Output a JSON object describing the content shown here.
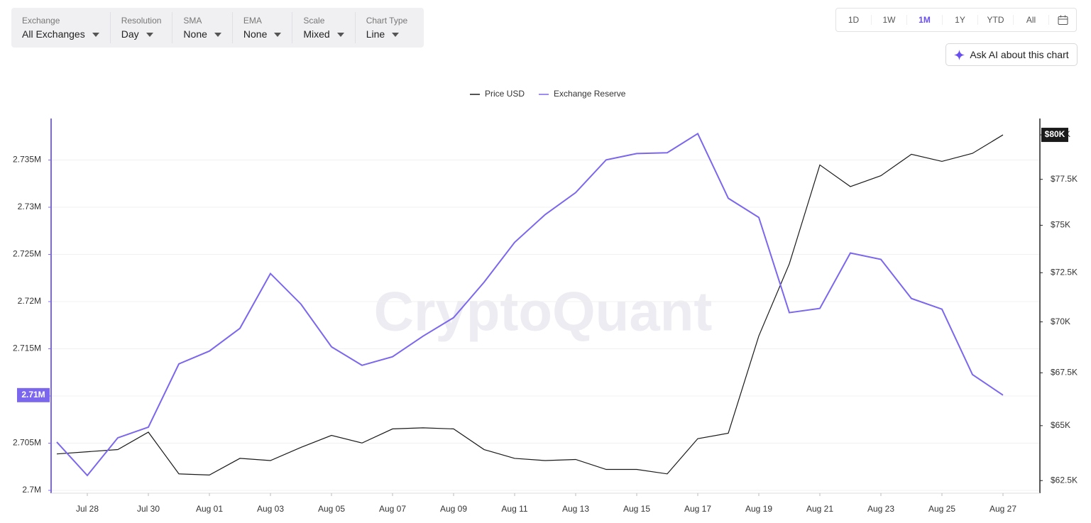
{
  "toolbar": {
    "controls": [
      {
        "label": "Exchange",
        "value": "All Exchanges"
      },
      {
        "label": "Resolution",
        "value": "Day"
      },
      {
        "label": "SMA",
        "value": "None"
      },
      {
        "label": "EMA",
        "value": "None"
      },
      {
        "label": "Scale",
        "value": "Mixed"
      },
      {
        "label": "Chart Type",
        "value": "Line"
      }
    ],
    "ranges": [
      "1D",
      "1W",
      "1M",
      "1Y",
      "YTD",
      "All"
    ],
    "ask_ai": "Ask AI about this chart"
  },
  "chart_data": {
    "type": "line",
    "watermark": "CryptoQuant",
    "x": [
      null,
      "Jul 28",
      null,
      "Jul 30",
      null,
      "Aug 01",
      null,
      "Aug 03",
      null,
      "Aug 05",
      null,
      "Aug 07",
      null,
      "Aug 09",
      null,
      "Aug 11",
      null,
      "Aug 13",
      null,
      "Aug 15",
      null,
      "Aug 17",
      null,
      "Aug 19",
      null,
      "Aug 21",
      null,
      "Aug 23",
      null,
      "Aug 25",
      null,
      "Aug 27"
    ],
    "series": [
      {
        "name": "Price USD",
        "color": "#1a1a1a",
        "axis": "y2",
        "last_label": "$80K",
        "values": [
          63700,
          63800,
          63900,
          64700,
          62800,
          62750,
          63500,
          63400,
          64000,
          64550,
          64200,
          64850,
          64900,
          64850,
          63900,
          63500,
          63400,
          63450,
          63000,
          63000,
          62800,
          64400,
          64650,
          69300,
          72960,
          78300,
          77100,
          77700,
          78900,
          78500,
          78950,
          80000
        ]
      },
      {
        "name": "Exchange Reserve",
        "color": "#7b67ee",
        "last_label": "2.71M",
        "values": [
          2705120,
          2701580,
          2705570,
          2706700,
          2713400,
          2714760,
          2717170,
          2722970,
          2719730,
          2715210,
          2713250,
          2714160,
          2716340,
          2718300,
          2722060,
          2726280,
          2729220,
          2731550,
          2735020,
          2735690,
          2735770,
          2737800,
          2730950,
          2728920,
          2718830,
          2719280,
          2725150,
          2724470,
          2720330,
          2719200,
          2712270,
          2710090
        ]
      }
    ],
    "ylim": [
      2699700,
      2739400
    ],
    "yticks": [
      {
        "value": 2700000,
        "label": "2.7M"
      },
      {
        "value": 2705000,
        "label": "2.705M"
      },
      {
        "value": 2710000,
        "label": "2.71M"
      },
      {
        "value": 2715000,
        "label": "2.715M"
      },
      {
        "value": 2720000,
        "label": "2.72M"
      },
      {
        "value": 2725000,
        "label": "2.725M"
      },
      {
        "value": 2730000,
        "label": "2.73M"
      },
      {
        "value": 2735000,
        "label": "2.735M"
      }
    ],
    "y2lim": [
      61940,
      80940
    ],
    "y2scale": "log",
    "y2ticks": [
      {
        "value": 62500,
        "label": "$62.5K"
      },
      {
        "value": 65000,
        "label": "$65K"
      },
      {
        "value": 67500,
        "label": "$67.5K"
      },
      {
        "value": 70000,
        "label": "$70K"
      },
      {
        "value": 72500,
        "label": "$72.5K"
      },
      {
        "value": 75000,
        "label": "$75K"
      },
      {
        "value": 77500,
        "label": "$77.5K"
      },
      {
        "value": 80000,
        "label": "$80K"
      }
    ],
    "grid": true
  }
}
